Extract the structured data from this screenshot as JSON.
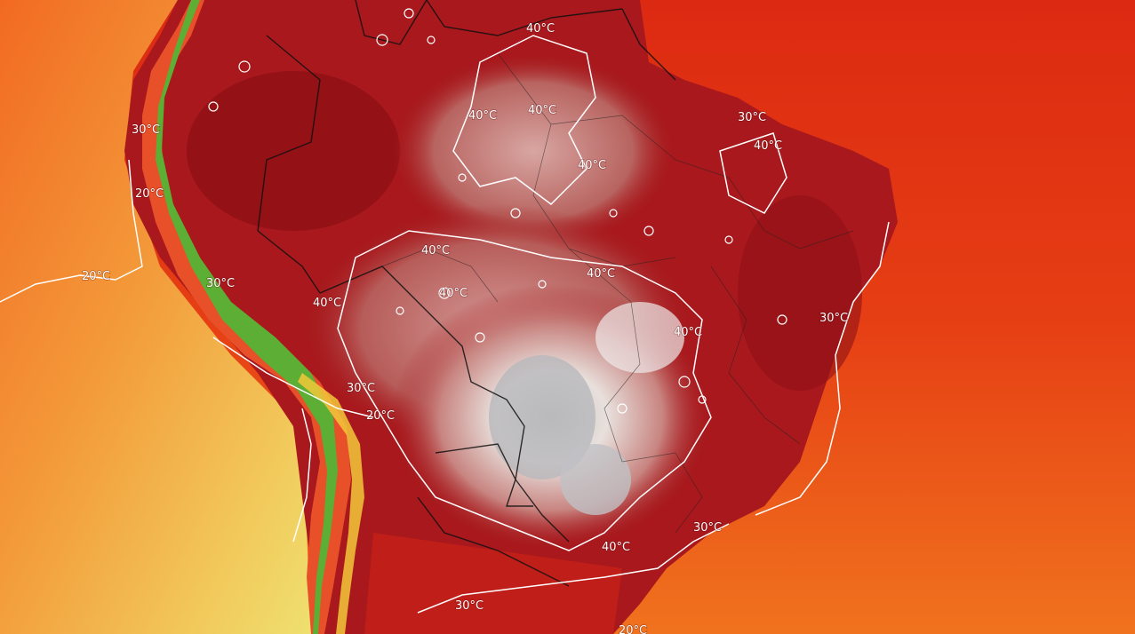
{
  "map": {
    "type": "temperature-map",
    "region": "South America",
    "labels": [
      {
        "id": "label-40-north-a",
        "text": "40°C"
      },
      {
        "id": "label-40-north-b",
        "text": "40°C"
      },
      {
        "id": "label-40-west",
        "text": "40°C"
      },
      {
        "id": "label-40-center-a",
        "text": "40°C"
      },
      {
        "id": "label-40-center-b",
        "text": "40°C"
      },
      {
        "id": "label-40-center-c",
        "text": "40°C"
      },
      {
        "id": "label-40-center-d",
        "text": "40°C"
      },
      {
        "id": "label-40-east",
        "text": "40°C"
      },
      {
        "id": "label-40-south",
        "text": "40°C"
      },
      {
        "id": "label-40-rondonia",
        "text": "40°C"
      },
      {
        "id": "label-40-northeast",
        "text": "40°C"
      },
      {
        "id": "label-30-north",
        "text": "30°C"
      },
      {
        "id": "label-30-east",
        "text": "30°C"
      },
      {
        "id": "label-30-southeast",
        "text": "30°C"
      },
      {
        "id": "label-30-south",
        "text": "30°C"
      },
      {
        "id": "label-30-andes-a",
        "text": "30°C"
      },
      {
        "id": "label-30-andes-b",
        "text": "30°C"
      },
      {
        "id": "label-30-andes-c",
        "text": "30°C"
      },
      {
        "id": "label-20-pacific",
        "text": "20°C"
      },
      {
        "id": "label-20-andes-a",
        "text": "20°C"
      },
      {
        "id": "label-20-andes-b",
        "text": "20°C"
      },
      {
        "id": "label-20-bottom",
        "text": "20°C"
      }
    ],
    "colors": {
      "ocean_warm": "#f05a1a",
      "ocean_hot": "#dc2a10",
      "ocean_cool": "#f0b040",
      "land_hot": "#a8181c",
      "land_very_hot": "#c87a78",
      "land_extreme": "#e8dcd8",
      "land_peak": "#b8b8b8",
      "andes_green": "#4aa030",
      "contour": "#ffffff",
      "border": "#111111"
    }
  }
}
